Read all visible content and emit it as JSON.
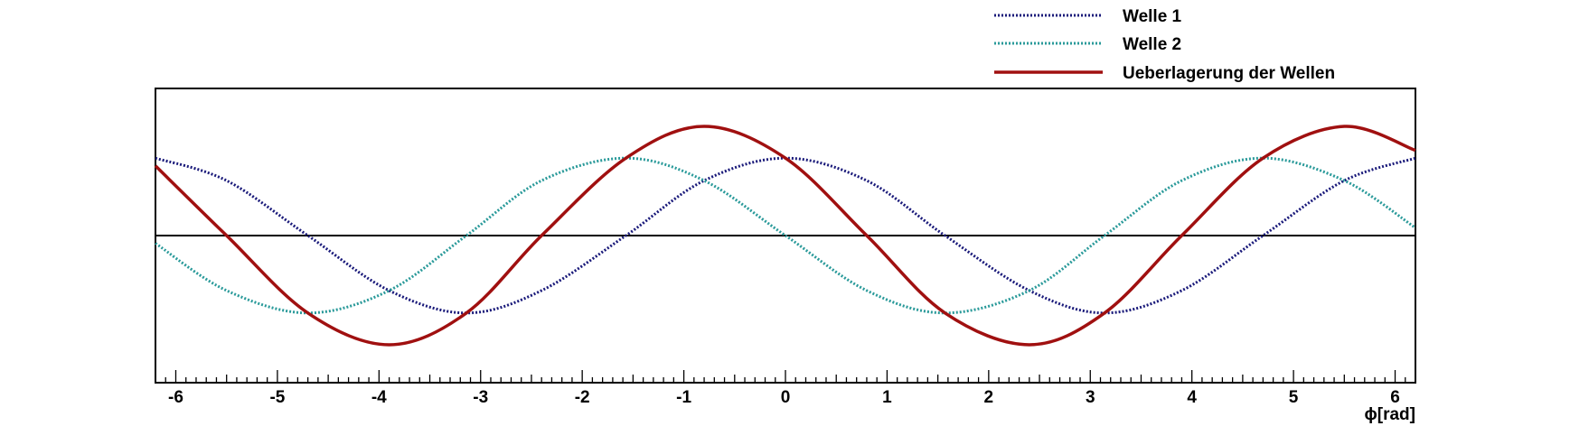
{
  "chart_data": {
    "type": "line",
    "title": "",
    "xlabel": "ϕ[rad]",
    "ylabel": "",
    "xlim": [
      -6.2,
      6.2
    ],
    "ylim": [
      -1.9,
      1.9
    ],
    "x_ticks": [
      -6,
      -5,
      -4,
      -3,
      -2,
      -1,
      0,
      1,
      2,
      3,
      4,
      5,
      6
    ],
    "x_tick_labels": [
      "-6",
      "-5",
      "-4",
      "-3",
      "-2",
      "-1",
      "0",
      "1",
      "2",
      "3",
      "4",
      "5",
      "6"
    ],
    "zero_line": true,
    "grid": false,
    "legend_position": "top-right",
    "series": [
      {
        "name": "Welle 1",
        "style": "dotted",
        "color": "#1a1a7a",
        "x": [
          -6.2,
          -5.5,
          -4.7,
          -3.9,
          -3.14,
          -2.4,
          -1.57,
          -0.8,
          0,
          0.8,
          1.57,
          2.4,
          3.14,
          3.9,
          4.7,
          5.5,
          6.2
        ],
        "y": [
          1.0,
          0.71,
          0.0,
          -0.71,
          -1.0,
          -0.71,
          0.0,
          0.71,
          1.0,
          0.71,
          0.0,
          -0.71,
          -1.0,
          -0.71,
          0.0,
          0.71,
          1.0
        ]
      },
      {
        "name": "Welle 2",
        "style": "dotted",
        "color": "#2a9a9a",
        "x": [
          -6.2,
          -5.5,
          -4.7,
          -3.9,
          -3.14,
          -2.4,
          -1.57,
          -0.8,
          0,
          0.8,
          1.57,
          2.4,
          3.14,
          3.9,
          4.7,
          5.5,
          6.2
        ],
        "y": [
          -0.1,
          -0.71,
          -1.0,
          -0.71,
          0.0,
          0.71,
          1.0,
          0.71,
          0.0,
          -0.71,
          -1.0,
          -0.71,
          0.0,
          0.71,
          1.0,
          0.71,
          0.1
        ]
      },
      {
        "name": "Ueberlagerung der Wellen",
        "style": "solid",
        "color": "#a01010",
        "x": [
          -6.2,
          -5.5,
          -4.7,
          -3.9,
          -3.14,
          -2.4,
          -1.57,
          -0.8,
          0,
          0.8,
          1.57,
          2.4,
          3.14,
          3.9,
          4.7,
          5.5,
          6.2
        ],
        "y": [
          0.9,
          0.0,
          -1.0,
          -1.41,
          -1.0,
          0.0,
          1.0,
          1.41,
          1.0,
          0.0,
          -1.0,
          -1.41,
          -1.0,
          0.0,
          1.0,
          1.41,
          1.1
        ]
      }
    ]
  },
  "legend": {
    "entries": [
      {
        "label": "Welle 1",
        "color": "#1a1a7a",
        "style": "dotted"
      },
      {
        "label": "Welle 2",
        "color": "#2a9a9a",
        "style": "dotted"
      },
      {
        "label": "Ueberlagerung der Wellen",
        "color": "#a01010",
        "style": "solid"
      }
    ]
  }
}
